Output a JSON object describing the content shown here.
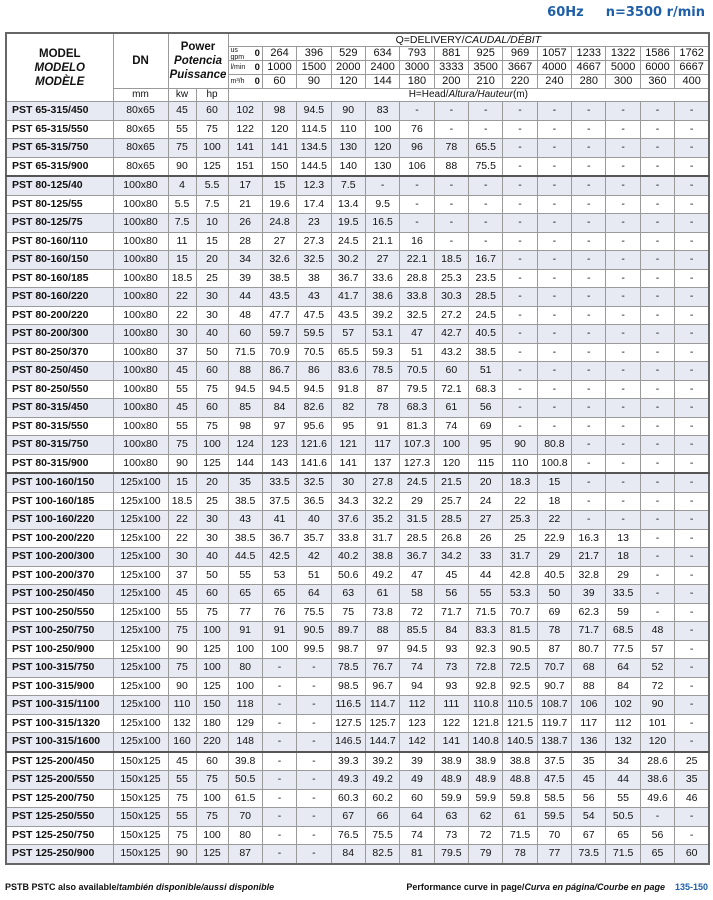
{
  "header": {
    "frequency": "60Hz",
    "speed": "n=3500 r/min"
  },
  "columns": {
    "model": [
      "MODEL",
      "MODELO",
      "MODÈLE"
    ],
    "dn": "DN",
    "dn_unit": "mm",
    "power": [
      "Power",
      "Potencia",
      "Puissance"
    ],
    "kw": "kw",
    "hp": "hp",
    "delivery_title_parts": [
      "Q=DELIVERY/",
      "CAUDAL/DÉBIT"
    ],
    "head_title_parts": [
      "H=Head/",
      "Altura/Hauteur",
      "(m)"
    ],
    "units": [
      {
        "label": "us gpm",
        "zero": "0",
        "values": [
          "264",
          "396",
          "529",
          "634",
          "793",
          "881",
          "925",
          "969",
          "1057",
          "1233",
          "1322",
          "1586",
          "1762"
        ]
      },
      {
        "label": "l/min",
        "zero": "0",
        "values": [
          "1000",
          "1500",
          "2000",
          "2400",
          "3000",
          "3333",
          "3500",
          "3667",
          "4000",
          "4667",
          "5000",
          "6000",
          "6667"
        ]
      },
      {
        "label": "m³/h",
        "zero": "0",
        "values": [
          "60",
          "90",
          "120",
          "144",
          "180",
          "200",
          "210",
          "220",
          "240",
          "280",
          "300",
          "360",
          "400"
        ]
      }
    ]
  },
  "groups": [
    {
      "rows": [
        [
          "PST 65-315/450",
          "80x65",
          "45",
          "60",
          "102",
          "98",
          "94.5",
          "90",
          "83",
          "-",
          "-",
          "-",
          "-",
          "-",
          "-",
          "-",
          "-",
          "-"
        ],
        [
          "PST 65-315/550",
          "80x65",
          "55",
          "75",
          "122",
          "120",
          "114.5",
          "110",
          "100",
          "76",
          "-",
          "-",
          "-",
          "-",
          "-",
          "-",
          "-",
          "-"
        ],
        [
          "PST 65-315/750",
          "80x65",
          "75",
          "100",
          "141",
          "141",
          "134.5",
          "130",
          "120",
          "96",
          "78",
          "65.5",
          "-",
          "-",
          "-",
          "-",
          "-",
          "-"
        ],
        [
          "PST 65-315/900",
          "80x65",
          "90",
          "125",
          "151",
          "150",
          "144.5",
          "140",
          "130",
          "106",
          "88",
          "75.5",
          "-",
          "-",
          "-",
          "-",
          "-",
          "-"
        ]
      ]
    },
    {
      "rows": [
        [
          "PST 80-125/40",
          "100x80",
          "4",
          "5.5",
          "17",
          "15",
          "12.3",
          "7.5",
          "-",
          "-",
          "-",
          "-",
          "-",
          "-",
          "-",
          "-",
          "-",
          "-"
        ],
        [
          "PST 80-125/55",
          "100x80",
          "5.5",
          "7.5",
          "21",
          "19.6",
          "17.4",
          "13.4",
          "9.5",
          "-",
          "-",
          "-",
          "-",
          "-",
          "-",
          "-",
          "-",
          "-"
        ],
        [
          "PST 80-125/75",
          "100x80",
          "7.5",
          "10",
          "26",
          "24.8",
          "23",
          "19.5",
          "16.5",
          "-",
          "-",
          "-",
          "-",
          "-",
          "-",
          "-",
          "-",
          "-"
        ],
        [
          "PST 80-160/110",
          "100x80",
          "11",
          "15",
          "28",
          "27",
          "27.3",
          "24.5",
          "21.1",
          "16",
          "-",
          "-",
          "-",
          "-",
          "-",
          "-",
          "-",
          "-"
        ],
        [
          "PST 80-160/150",
          "100x80",
          "15",
          "20",
          "34",
          "32.6",
          "32.5",
          "30.2",
          "27",
          "22.1",
          "18.5",
          "16.7",
          "-",
          "-",
          "-",
          "-",
          "-",
          "-"
        ],
        [
          "PST 80-160/185",
          "100x80",
          "18.5",
          "25",
          "39",
          "38.5",
          "38",
          "36.7",
          "33.6",
          "28.8",
          "25.3",
          "23.5",
          "-",
          "-",
          "-",
          "-",
          "-",
          "-"
        ],
        [
          "PST 80-160/220",
          "100x80",
          "22",
          "30",
          "44",
          "43.5",
          "43",
          "41.7",
          "38.6",
          "33.8",
          "30.3",
          "28.5",
          "-",
          "-",
          "-",
          "-",
          "-",
          "-"
        ],
        [
          "PST 80-200/220",
          "100x80",
          "22",
          "30",
          "48",
          "47.7",
          "47.5",
          "43.5",
          "39.2",
          "32.5",
          "27.2",
          "24.5",
          "-",
          "-",
          "-",
          "-",
          "-",
          "-"
        ],
        [
          "PST 80-200/300",
          "100x80",
          "30",
          "40",
          "60",
          "59.7",
          "59.5",
          "57",
          "53.1",
          "47",
          "42.7",
          "40.5",
          "-",
          "-",
          "-",
          "-",
          "-",
          "-"
        ],
        [
          "PST 80-250/370",
          "100x80",
          "37",
          "50",
          "71.5",
          "70.9",
          "70.5",
          "65.5",
          "59.3",
          "51",
          "43.2",
          "38.5",
          "-",
          "-",
          "-",
          "-",
          "-",
          "-"
        ],
        [
          "PST 80-250/450",
          "100x80",
          "45",
          "60",
          "88",
          "86.7",
          "86",
          "83.6",
          "78.5",
          "70.5",
          "60",
          "51",
          "-",
          "-",
          "-",
          "-",
          "-",
          "-"
        ],
        [
          "PST 80-250/550",
          "100x80",
          "55",
          "75",
          "94.5",
          "94.5",
          "94.5",
          "91.8",
          "87",
          "79.5",
          "72.1",
          "68.3",
          "-",
          "-",
          "-",
          "-",
          "-",
          "-"
        ],
        [
          "PST 80-315/450",
          "100x80",
          "45",
          "60",
          "85",
          "84",
          "82.6",
          "82",
          "78",
          "68.3",
          "61",
          "56",
          "-",
          "-",
          "-",
          "-",
          "-",
          "-"
        ],
        [
          "PST 80-315/550",
          "100x80",
          "55",
          "75",
          "98",
          "97",
          "95.6",
          "95",
          "91",
          "81.3",
          "74",
          "69",
          "-",
          "-",
          "-",
          "-",
          "-",
          "-"
        ],
        [
          "PST 80-315/750",
          "100x80",
          "75",
          "100",
          "124",
          "123",
          "121.6",
          "121",
          "117",
          "107.3",
          "100",
          "95",
          "90",
          "80.8",
          "-",
          "-",
          "-",
          "-"
        ],
        [
          "PST 80-315/900",
          "100x80",
          "90",
          "125",
          "144",
          "143",
          "141.6",
          "141",
          "137",
          "127.3",
          "120",
          "115",
          "110",
          "100.8",
          "-",
          "-",
          "-",
          "-"
        ]
      ]
    },
    {
      "rows": [
        [
          "PST 100-160/150",
          "125x100",
          "15",
          "20",
          "35",
          "33.5",
          "32.5",
          "30",
          "27.8",
          "24.5",
          "21.5",
          "20",
          "18.3",
          "15",
          "-",
          "-",
          "-",
          "-"
        ],
        [
          "PST 100-160/185",
          "125x100",
          "18.5",
          "25",
          "38.5",
          "37.5",
          "36.5",
          "34.3",
          "32.2",
          "29",
          "25.7",
          "24",
          "22",
          "18",
          "-",
          "-",
          "-",
          "-"
        ],
        [
          "PST 100-160/220",
          "125x100",
          "22",
          "30",
          "43",
          "41",
          "40",
          "37.6",
          "35.2",
          "31.5",
          "28.5",
          "27",
          "25.3",
          "22",
          "-",
          "-",
          "-",
          "-"
        ],
        [
          "PST 100-200/220",
          "125x100",
          "22",
          "30",
          "38.5",
          "36.7",
          "35.7",
          "33.8",
          "31.7",
          "28.5",
          "26.8",
          "26",
          "25",
          "22.9",
          "16.3",
          "13",
          "-",
          "-"
        ],
        [
          "PST 100-200/300",
          "125x100",
          "30",
          "40",
          "44.5",
          "42.5",
          "42",
          "40.2",
          "38.8",
          "36.7",
          "34.2",
          "33",
          "31.7",
          "29",
          "21.7",
          "18",
          "-",
          "-"
        ],
        [
          "PST 100-200/370",
          "125x100",
          "37",
          "50",
          "55",
          "53",
          "51",
          "50.6",
          "49.2",
          "47",
          "45",
          "44",
          "42.8",
          "40.5",
          "32.8",
          "29",
          "-",
          "-"
        ],
        [
          "PST 100-250/450",
          "125x100",
          "45",
          "60",
          "65",
          "65",
          "64",
          "63",
          "61",
          "58",
          "56",
          "55",
          "53.3",
          "50",
          "39",
          "33.5",
          "-",
          "-"
        ],
        [
          "PST 100-250/550",
          "125x100",
          "55",
          "75",
          "77",
          "76",
          "75.5",
          "75",
          "73.8",
          "72",
          "71.7",
          "71.5",
          "70.7",
          "69",
          "62.3",
          "59",
          "-",
          "-"
        ],
        [
          "PST 100-250/750",
          "125x100",
          "75",
          "100",
          "91",
          "91",
          "90.5",
          "89.7",
          "88",
          "85.5",
          "84",
          "83.3",
          "81.5",
          "78",
          "71.7",
          "68.5",
          "48",
          "-"
        ],
        [
          "PST 100-250/900",
          "125x100",
          "90",
          "125",
          "100",
          "100",
          "99.5",
          "98.7",
          "97",
          "94.5",
          "93",
          "92.3",
          "90.5",
          "87",
          "80.7",
          "77.5",
          "57",
          "-"
        ],
        [
          "PST 100-315/750",
          "125x100",
          "75",
          "100",
          "80",
          "-",
          "-",
          "78.5",
          "76.7",
          "74",
          "73",
          "72.8",
          "72.5",
          "70.7",
          "68",
          "64",
          "52",
          "-"
        ],
        [
          "PST 100-315/900",
          "125x100",
          "90",
          "125",
          "100",
          "-",
          "-",
          "98.5",
          "96.7",
          "94",
          "93",
          "92.8",
          "92.5",
          "90.7",
          "88",
          "84",
          "72",
          "-"
        ],
        [
          "PST 100-315/1100",
          "125x100",
          "110",
          "150",
          "118",
          "-",
          "-",
          "116.5",
          "114.7",
          "112",
          "111",
          "110.8",
          "110.5",
          "108.7",
          "106",
          "102",
          "90",
          "-"
        ],
        [
          "PST 100-315/1320",
          "125x100",
          "132",
          "180",
          "129",
          "-",
          "-",
          "127.5",
          "125.7",
          "123",
          "122",
          "121.8",
          "121.5",
          "119.7",
          "117",
          "112",
          "101",
          "-"
        ],
        [
          "PST 100-315/1600",
          "125x100",
          "160",
          "220",
          "148",
          "-",
          "-",
          "146.5",
          "144.7",
          "142",
          "141",
          "140.8",
          "140.5",
          "138.7",
          "136",
          "132",
          "120",
          "-"
        ]
      ]
    },
    {
      "rows": [
        [
          "PST 125-200/450",
          "150x125",
          "45",
          "60",
          "39.8",
          "-",
          "-",
          "39.3",
          "39.2",
          "39",
          "38.9",
          "38.9",
          "38.8",
          "37.5",
          "35",
          "34",
          "28.6",
          "25"
        ],
        [
          "PST 125-200/550",
          "150x125",
          "55",
          "75",
          "50.5",
          "-",
          "-",
          "49.3",
          "49.2",
          "49",
          "48.9",
          "48.9",
          "48.8",
          "47.5",
          "45",
          "44",
          "38.6",
          "35"
        ],
        [
          "PST 125-200/750",
          "150x125",
          "75",
          "100",
          "61.5",
          "-",
          "-",
          "60.3",
          "60.2",
          "60",
          "59.9",
          "59.9",
          "59.8",
          "58.5",
          "56",
          "55",
          "49.6",
          "46"
        ],
        [
          "PST 125-250/550",
          "150x125",
          "55",
          "75",
          "70",
          "-",
          "-",
          "67",
          "66",
          "64",
          "63",
          "62",
          "61",
          "59.5",
          "54",
          "50.5",
          "-",
          "-"
        ],
        [
          "PST 125-250/750",
          "150x125",
          "75",
          "100",
          "80",
          "-",
          "-",
          "76.5",
          "75.5",
          "74",
          "73",
          "72",
          "71.5",
          "70",
          "67",
          "65",
          "56",
          "-"
        ],
        [
          "PST 125-250/900",
          "150x125",
          "90",
          "125",
          "87",
          "-",
          "-",
          "84",
          "82.5",
          "81",
          "79.5",
          "79",
          "78",
          "77",
          "73.5",
          "71.5",
          "65",
          "60"
        ]
      ]
    }
  ],
  "footer": {
    "left_parts": [
      "PSTB PSTC also available/",
      "también disponible/aussi disponible"
    ],
    "right_parts": [
      "Performance curve in page/",
      "Curva en página/Courbe en page"
    ],
    "pages": "135-150"
  },
  "colors": {
    "accent": "#1f5fa8",
    "row_shade": "#e7eaf2"
  }
}
